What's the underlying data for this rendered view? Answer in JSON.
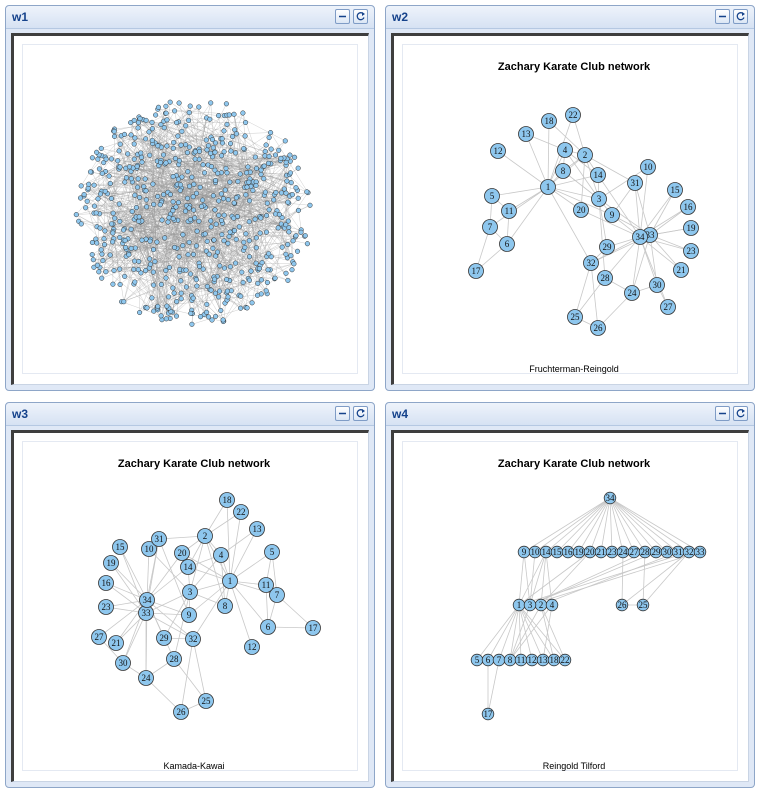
{
  "windows": [
    {
      "id": "w1",
      "title": "w1",
      "kind": "random",
      "plot_title": "",
      "subtitle": ""
    },
    {
      "id": "w2",
      "title": "w2",
      "kind": "karate",
      "plot_title": "Zachary Karate Club network",
      "subtitle": "Fruchterman-Reingold"
    },
    {
      "id": "w3",
      "title": "w3",
      "kind": "karate",
      "plot_title": "Zachary Karate Club network",
      "subtitle": "Kamada-Kawai"
    },
    {
      "id": "w4",
      "title": "w4",
      "kind": "karate",
      "plot_title": "Zachary Karate Club network",
      "subtitle": "Reingold Tilford"
    }
  ],
  "controls": {
    "minimize_icon": "minimize-icon",
    "refresh_icon": "refresh-icon"
  },
  "colors": {
    "node_fill": "#8ec7ee",
    "node_stroke": "#333333",
    "edge": "#c8c8c8",
    "dense_edge": "#9a9a9a",
    "titlebar_text": "#15428b"
  },
  "graph": {
    "name": "Zachary Karate Club",
    "nodes": [
      "1",
      "2",
      "3",
      "4",
      "5",
      "6",
      "7",
      "8",
      "9",
      "10",
      "11",
      "12",
      "13",
      "14",
      "15",
      "16",
      "17",
      "18",
      "19",
      "20",
      "21",
      "22",
      "23",
      "24",
      "25",
      "26",
      "27",
      "28",
      "29",
      "30",
      "31",
      "32",
      "33",
      "34"
    ],
    "edges": [
      [
        1,
        2
      ],
      [
        1,
        3
      ],
      [
        1,
        4
      ],
      [
        1,
        5
      ],
      [
        1,
        6
      ],
      [
        1,
        7
      ],
      [
        1,
        8
      ],
      [
        1,
        9
      ],
      [
        1,
        11
      ],
      [
        1,
        12
      ],
      [
        1,
        13
      ],
      [
        1,
        14
      ],
      [
        1,
        18
      ],
      [
        1,
        20
      ],
      [
        1,
        22
      ],
      [
        1,
        32
      ],
      [
        2,
        3
      ],
      [
        2,
        4
      ],
      [
        2,
        8
      ],
      [
        2,
        14
      ],
      [
        2,
        18
      ],
      [
        2,
        20
      ],
      [
        2,
        22
      ],
      [
        2,
        31
      ],
      [
        3,
        4
      ],
      [
        3,
        8
      ],
      [
        3,
        9
      ],
      [
        3,
        10
      ],
      [
        3,
        14
      ],
      [
        3,
        28
      ],
      [
        3,
        29
      ],
      [
        3,
        33
      ],
      [
        4,
        8
      ],
      [
        4,
        13
      ],
      [
        4,
        14
      ],
      [
        5,
        7
      ],
      [
        5,
        11
      ],
      [
        6,
        7
      ],
      [
        6,
        11
      ],
      [
        6,
        17
      ],
      [
        7,
        17
      ],
      [
        9,
        31
      ],
      [
        9,
        33
      ],
      [
        9,
        34
      ],
      [
        10,
        34
      ],
      [
        14,
        34
      ],
      [
        15,
        33
      ],
      [
        15,
        34
      ],
      [
        16,
        33
      ],
      [
        16,
        34
      ],
      [
        19,
        33
      ],
      [
        19,
        34
      ],
      [
        20,
        34
      ],
      [
        21,
        33
      ],
      [
        21,
        34
      ],
      [
        23,
        33
      ],
      [
        23,
        34
      ],
      [
        24,
        26
      ],
      [
        24,
        28
      ],
      [
        24,
        30
      ],
      [
        24,
        33
      ],
      [
        24,
        34
      ],
      [
        25,
        26
      ],
      [
        25,
        28
      ],
      [
        25,
        32
      ],
      [
        26,
        32
      ],
      [
        27,
        30
      ],
      [
        27,
        34
      ],
      [
        28,
        34
      ],
      [
        29,
        32
      ],
      [
        29,
        34
      ],
      [
        30,
        33
      ],
      [
        30,
        34
      ],
      [
        31,
        33
      ],
      [
        31,
        34
      ],
      [
        32,
        33
      ],
      [
        32,
        34
      ],
      [
        33,
        34
      ]
    ]
  }
}
